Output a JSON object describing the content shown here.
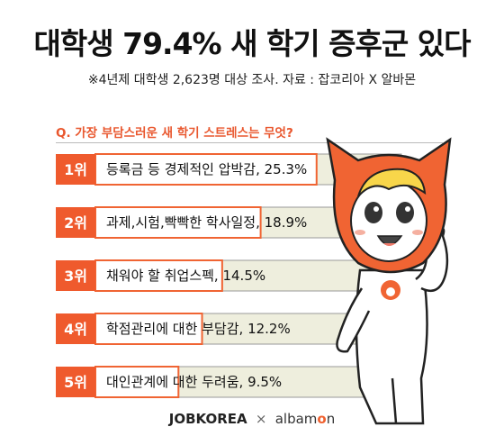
{
  "header": {
    "title": "대학생 79.4% 새 학기 증후군 있다",
    "subtitle": "※4년제 대학생 2,623명 대상 조사. 자료 : 잡코리아 X 알바몬"
  },
  "question": "Q. 가장 부담스러운 새 학기 스트레스는 무엇?",
  "chart_data": {
    "type": "bar",
    "orientation": "horizontal",
    "categories": [
      "1위",
      "2위",
      "3위",
      "4위",
      "5위"
    ],
    "items": [
      {
        "rank": "1위",
        "label": "등록금 등 경제적인 압박감, 25.3%",
        "value": 25.3
      },
      {
        "rank": "2위",
        "label": "과제,시험,빡빡한 학사일정, 18.9%",
        "value": 18.9
      },
      {
        "rank": "3위",
        "label": "채워야 할 취업스펙, 14.5%",
        "value": 14.5
      },
      {
        "rank": "4위",
        "label": "학점관리에 대한 부담감, 12.2%",
        "value": 12.2
      },
      {
        "rank": "5위",
        "label": "대인관계에 대한 두려움, 9.5%",
        "value": 9.5
      }
    ],
    "xlim": [
      0,
      35
    ],
    "colors": {
      "rank_box": "#ef5a2d",
      "bar": "#f06433",
      "track": "#eeeedd",
      "track_border": "#999999"
    }
  },
  "footer": {
    "jobkorea": "JOBKOREA",
    "separator": "×",
    "albamon_prefix": "albam",
    "albamon_o": "o",
    "albamon_suffix": "n"
  },
  "mascot": {
    "icon": "orange-cat-mascot-icon"
  }
}
